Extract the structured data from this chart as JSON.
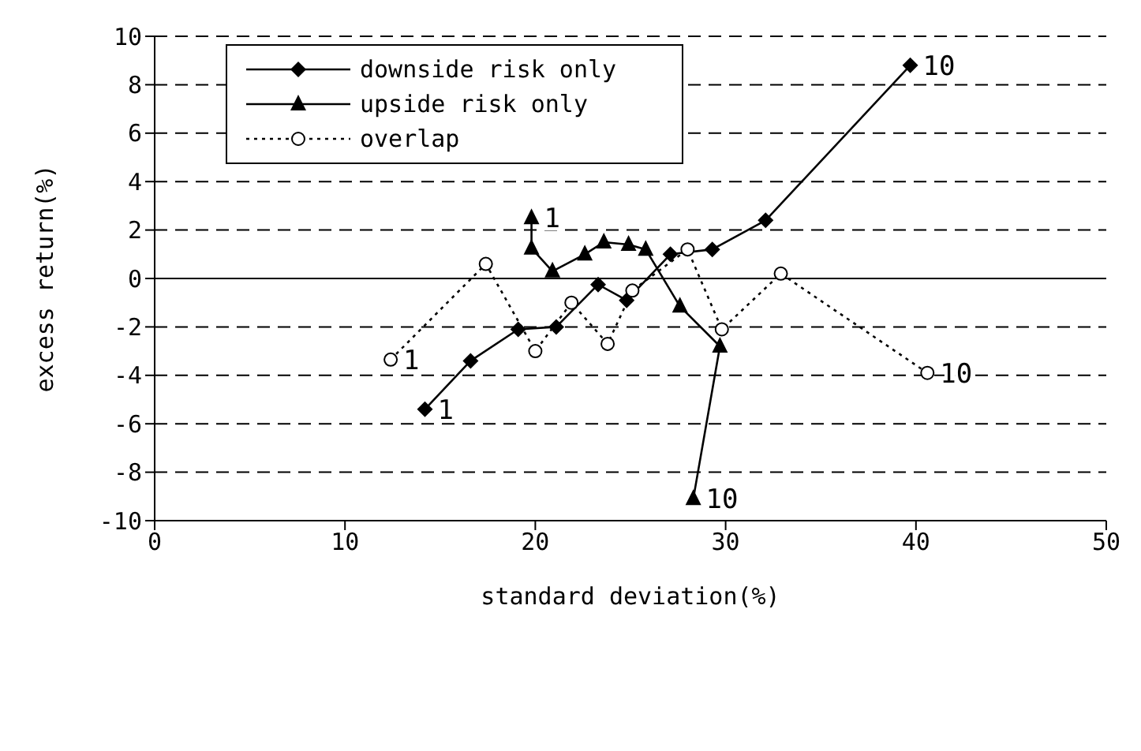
{
  "chart_data": {
    "type": "line",
    "xlabel": "standard deviation(%)",
    "ylabel": "excess return(%)",
    "xlim": [
      0,
      50
    ],
    "xticks": [
      0,
      10,
      20,
      30,
      40,
      50
    ],
    "ylim": [
      -10,
      10
    ],
    "yticks": [
      -10,
      -8,
      -6,
      -4,
      -2,
      0,
      2,
      4,
      6,
      8,
      10
    ],
    "grid": "y",
    "legend": "top left",
    "line_style": "solid",
    "series": [
      {
        "name": "downside risk only",
        "color": "#000000",
        "marker": "diamond",
        "x": [
          14.2,
          16.6,
          19.1,
          21.1,
          23.3,
          24.8,
          27.1,
          29.3,
          32.1,
          39.7
        ],
        "values": [
          -5.4,
          -3.4,
          -2.1,
          -2.0,
          -0.25,
          -0.9,
          1.0,
          1.2,
          2.4,
          8.8
        ]
      },
      {
        "name": "upside risk only",
        "color": "#000000",
        "marker": "triangle",
        "x": [
          19.8,
          19.8,
          20.9,
          22.6,
          23.6,
          24.9,
          25.8,
          27.6,
          29.7,
          28.3
        ],
        "values": [
          2.5,
          1.25,
          0.3,
          1.0,
          1.5,
          1.4,
          1.2,
          -1.15,
          -2.8,
          -9.1
        ]
      },
      {
        "name": "overlap",
        "color": "#000000",
        "marker": "circle",
        "line_style": "dotted",
        "x": [
          12.4,
          17.4,
          20.0,
          21.9,
          23.8,
          25.1,
          28.0,
          29.8,
          32.9,
          40.6
        ],
        "values": [
          -3.35,
          0.6,
          -3.0,
          -1.0,
          -2.7,
          -0.5,
          1.2,
          -2.1,
          0.2,
          -3.9
        ]
      }
    ],
    "ref_lines": [
      {
        "axis": "y",
        "value": 0,
        "color": "#000000",
        "line_style": "solid"
      }
    ],
    "annotations": [
      {
        "text": "1",
        "x": 14.2,
        "y": -5.4
      },
      {
        "text": "10",
        "x": 39.7,
        "y": 8.8
      },
      {
        "text": "1",
        "x": 19.8,
        "y": 2.5
      },
      {
        "text": "10",
        "x": 28.3,
        "y": -9.1
      },
      {
        "text": "1",
        "x": 12.4,
        "y": -3.35
      },
      {
        "text": "10",
        "x": 40.6,
        "y": -3.9
      }
    ]
  }
}
